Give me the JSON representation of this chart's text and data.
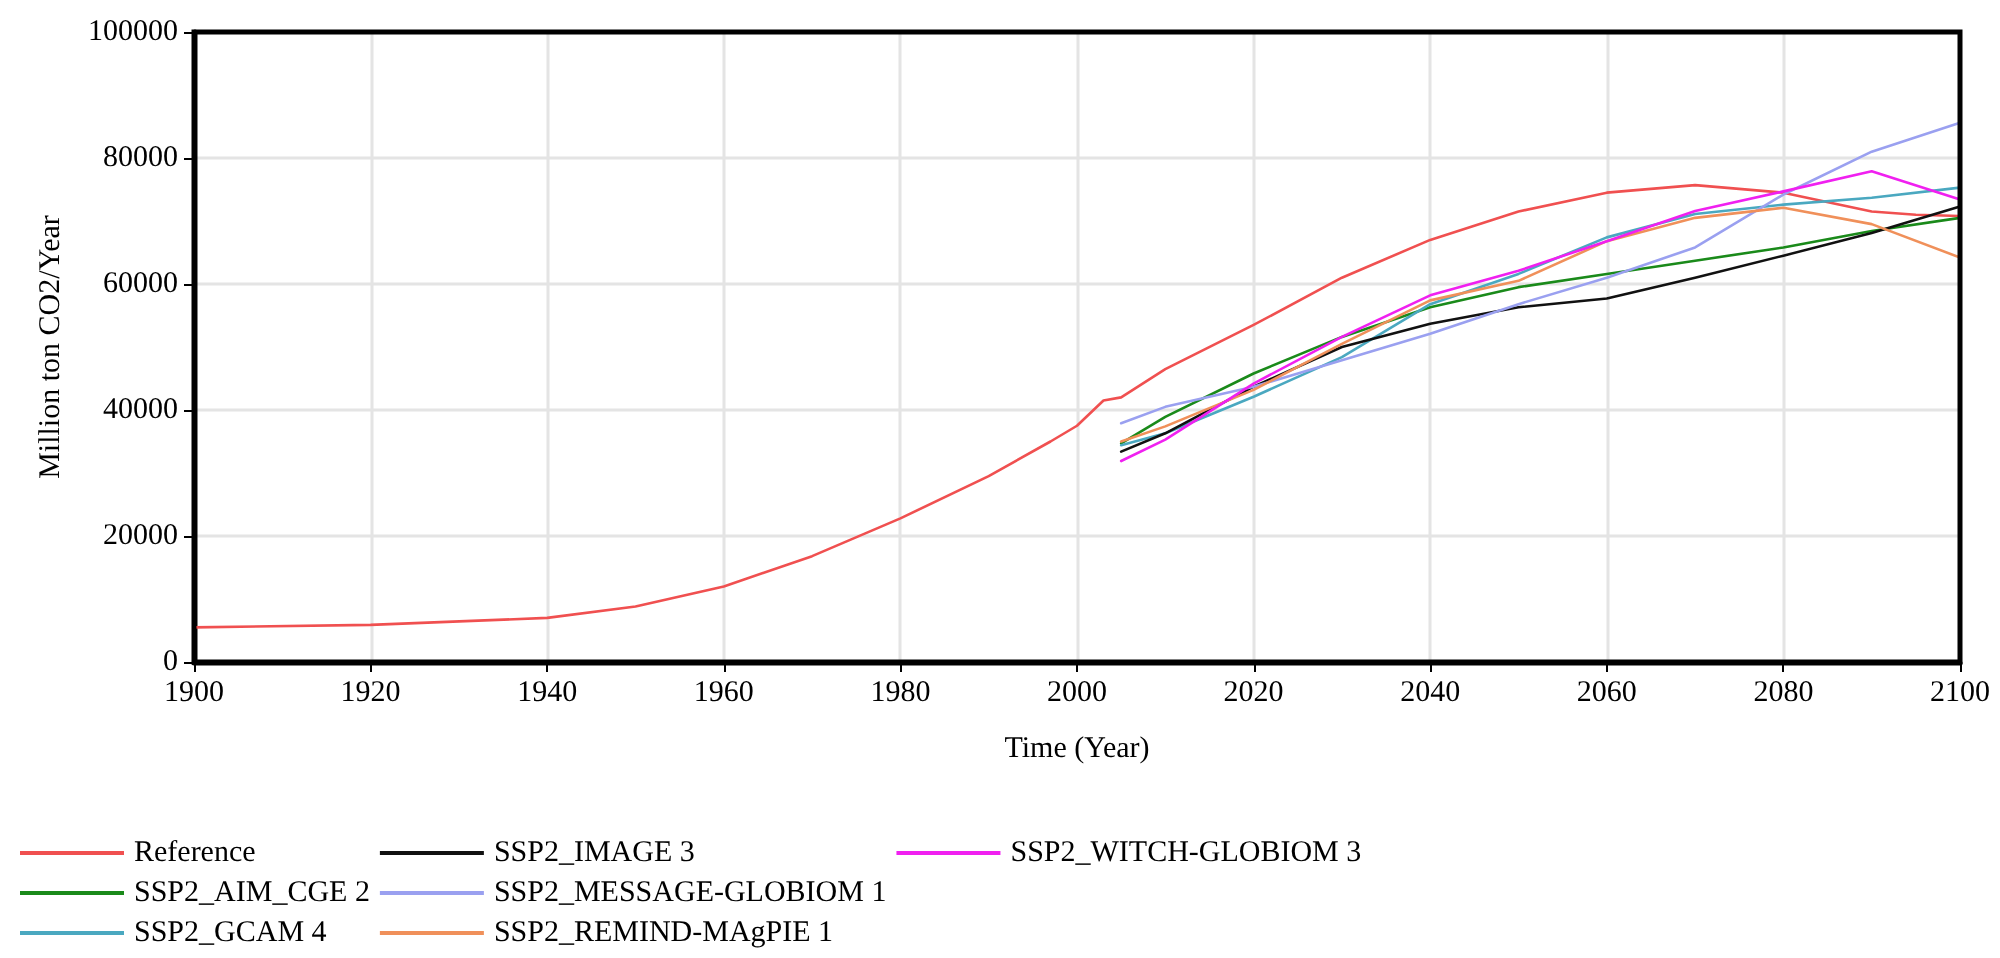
{
  "chart_data": {
    "type": "line",
    "xlabel": "Time (Year)",
    "ylabel": "Million ton CO2/Year",
    "xlim": [
      1900,
      2100
    ],
    "xticks": [
      1900,
      1920,
      1940,
      1960,
      1980,
      2000,
      2020,
      2040,
      2060,
      2080,
      2100
    ],
    "ylim": [
      0,
      100000
    ],
    "yticks": [
      0,
      20000,
      40000,
      60000,
      80000,
      100000
    ],
    "grid": true,
    "legend": "bottom",
    "marker": "none",
    "line_style": "solid",
    "series": [
      {
        "name": "Reference",
        "color": "#f05050",
        "x": [
          1900,
          1920,
          1940,
          1950,
          1960,
          1970,
          1980,
          1990,
          1997,
          2000,
          2003,
          2005,
          2010,
          2020,
          2030,
          2040,
          2050,
          2060,
          2070,
          2080,
          2090,
          2095,
          2100
        ],
        "values": [
          5500,
          5900,
          7000,
          8800,
          12000,
          16800,
          22800,
          29500,
          35000,
          37500,
          41500,
          42000,
          46500,
          53500,
          61000,
          67000,
          71500,
          74500,
          75700,
          74500,
          71500,
          71000,
          70800
        ]
      },
      {
        "name": "SSP2_AIM_CGE 2",
        "color": "#1a8a1a",
        "x": [
          2005,
          2010,
          2020,
          2030,
          2040,
          2050,
          2060,
          2070,
          2080,
          2090,
          2100
        ],
        "values": [
          34700,
          38900,
          45800,
          51600,
          56300,
          59500,
          61600,
          63700,
          65800,
          68400,
          70500
        ]
      },
      {
        "name": "SSP2_GCAM 4",
        "color": "#4aa8c0",
        "x": [
          2005,
          2010,
          2020,
          2030,
          2040,
          2050,
          2060,
          2070,
          2080,
          2090,
          2100
        ],
        "values": [
          34400,
          36300,
          42100,
          48400,
          56800,
          61600,
          67400,
          71100,
          72600,
          73700,
          75300
        ]
      },
      {
        "name": "SSP2_IMAGE 3",
        "color": "#111111",
        "x": [
          2005,
          2010,
          2020,
          2030,
          2040,
          2050,
          2060,
          2070,
          2080,
          2090,
          2100
        ],
        "values": [
          33400,
          36300,
          43700,
          50000,
          53700,
          56300,
          57700,
          61000,
          64500,
          68100,
          72300
        ]
      },
      {
        "name": "SSP2_MESSAGE-GLOBIOM 1",
        "color": "#9aa0f0",
        "x": [
          2005,
          2010,
          2020,
          2030,
          2040,
          2050,
          2060,
          2070,
          2080,
          2090,
          2100
        ],
        "values": [
          37900,
          40500,
          43700,
          47900,
          52100,
          56800,
          61000,
          65800,
          74200,
          81000,
          85600
        ]
      },
      {
        "name": "SSP2_REMIND-MAgPIE 1",
        "color": "#f0905a",
        "x": [
          2005,
          2010,
          2020,
          2030,
          2040,
          2050,
          2060,
          2070,
          2080,
          2090,
          2100
        ],
        "values": [
          35000,
          37400,
          43200,
          50500,
          57400,
          60500,
          66800,
          70500,
          72100,
          69500,
          64200
        ]
      },
      {
        "name": "SSP2_WITCH-GLOBIOM 3",
        "color": "#f020f0",
        "x": [
          2005,
          2010,
          2020,
          2030,
          2040,
          2050,
          2060,
          2070,
          2080,
          2090,
          2100
        ],
        "values": [
          31900,
          35300,
          44200,
          51600,
          58200,
          62100,
          66800,
          71600,
          74700,
          77900,
          73400
        ]
      }
    ]
  }
}
